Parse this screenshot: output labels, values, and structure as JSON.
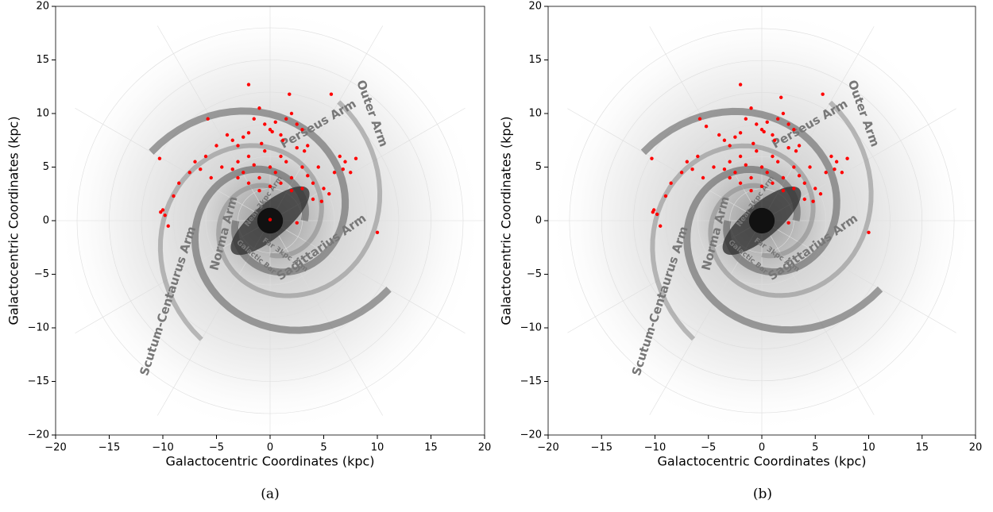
{
  "chart_data": [
    {
      "type": "scatter",
      "caption": "(a)",
      "xlabel": "Galactocentric Coordinates (kpc)",
      "ylabel": "Galactocentric Coordinates (kpc)",
      "color": "#ff0000",
      "xlim": [
        -20,
        20
      ],
      "ylim": [
        -20,
        20
      ],
      "xticks": [
        {
          "value": -20,
          "label": "−20"
        },
        {
          "value": -15,
          "label": "−15"
        },
        {
          "value": -10,
          "label": "−10"
        },
        {
          "value": -5,
          "label": "−5"
        },
        0,
        5,
        10,
        15,
        20
      ],
      "yticks": [
        {
          "value": -20,
          "label": "−20"
        },
        {
          "value": -15,
          "label": "−15"
        },
        {
          "value": -10,
          "label": "−10"
        },
        {
          "value": -5,
          "label": "−5"
        },
        0,
        5,
        10,
        15,
        20
      ],
      "annotations": [
        "Perseus Arm",
        "Outer Arm",
        "Norma Arm",
        "Sagittarius Arm",
        "Scutum-Centaurus Arm",
        "Near 3kpc Arm",
        "Far 3kpc Arm",
        "Galactic Bar"
      ],
      "x": [
        -10.3,
        -10,
        -9.8,
        -9.5,
        -10.2,
        -9,
        -8.5,
        -7.5,
        -6.5,
        -5.8,
        -5,
        -4,
        -3.5,
        -3,
        -2.5,
        -2,
        -2,
        -1.5,
        -1,
        -0.5,
        0,
        0.2,
        0.5,
        1,
        1.5,
        2,
        2.5,
        3,
        3.5,
        1.8,
        5.7,
        -4.5,
        -3.5,
        -3,
        -2.5,
        -2,
        -1.5,
        -1,
        -0.5,
        0,
        0.5,
        1,
        1.5,
        2,
        2.5,
        3,
        3.5,
        4,
        4.5,
        5,
        5.5,
        6,
        6.5,
        7,
        7.5,
        8,
        4,
        3,
        2,
        1,
        0,
        -1,
        -2,
        -3,
        0,
        2.5,
        10,
        -6,
        -7,
        -5.5,
        4.8,
        6.8,
        3.2,
        -0.8,
        1.2
      ],
      "y": [
        5.8,
        1,
        0.5,
        -0.5,
        0.8,
        2.3,
        3.5,
        4.5,
        4.8,
        9.5,
        7,
        8,
        7.5,
        7,
        7.8,
        12.7,
        8.2,
        9.5,
        10.5,
        9,
        8.5,
        8.3,
        9.2,
        8,
        9.5,
        10,
        9,
        8.5,
        7,
        11.8,
        11.8,
        5,
        4.8,
        5.5,
        4.5,
        6,
        5.2,
        4,
        6.5,
        5,
        4.5,
        6,
        5.5,
        4,
        6.8,
        5,
        4.2,
        3.5,
        5,
        3,
        2.5,
        4.5,
        6,
        5.5,
        4.5,
        5.8,
        2,
        3,
        2.8,
        3.5,
        3.2,
        2.8,
        3.5,
        4,
        0.1,
        -0.2,
        -1.1,
        6,
        5.5,
        4,
        1.8,
        4.8,
        6.5,
        7.2,
        7.5
      ]
    },
    {
      "type": "scatter",
      "caption": "(b)",
      "xlabel": "Galactocentric Coordinates (kpc)",
      "ylabel": "Galactocentric Coordinates (kpc)",
      "color": "#ff0000",
      "xlim": [
        -20,
        20
      ],
      "ylim": [
        -20,
        20
      ],
      "xticks": [
        {
          "value": -20,
          "label": "−20"
        },
        {
          "value": -15,
          "label": "−15"
        },
        {
          "value": -10,
          "label": "−10"
        },
        {
          "value": -5,
          "label": "−5"
        },
        0,
        5,
        10,
        15,
        20
      ],
      "yticks": [
        {
          "value": -20,
          "label": "−20"
        },
        {
          "value": -15,
          "label": "−15"
        },
        {
          "value": -10,
          "label": "−10"
        },
        {
          "value": -5,
          "label": "−5"
        },
        0,
        5,
        10,
        15,
        20
      ],
      "annotations": [
        "Perseus Arm",
        "Outer Arm",
        "Norma Arm",
        "Sagittarius Arm",
        "Scutum-Centaurus Arm",
        "Near 3kpc Arm",
        "Far 3kpc Arm",
        "Galactic Bar"
      ],
      "x": [
        -10.3,
        -10.1,
        -9.8,
        -9.5,
        -10.2,
        -9,
        -8.5,
        -7.5,
        -6.5,
        -5.8,
        -5.2,
        -4,
        -3.5,
        -3,
        -2.5,
        -2,
        -2,
        -1.5,
        -1,
        -0.5,
        0,
        0.2,
        0.5,
        1,
        1.5,
        2,
        2.5,
        3,
        3.5,
        1.8,
        5.7,
        -4.5,
        -3.5,
        -3,
        -2.5,
        -2,
        -1.5,
        -1,
        -0.5,
        0,
        0.5,
        1,
        1.5,
        2,
        2.5,
        3,
        3.5,
        4,
        4.5,
        5,
        5.5,
        6,
        6.5,
        7,
        7.5,
        8,
        4,
        3,
        2,
        1,
        0,
        -1,
        -2,
        -3,
        2.5,
        10,
        -6,
        -7,
        -5.5,
        4.8,
        6.8,
        3.2,
        -0.8,
        1.2
      ],
      "y": [
        5.8,
        1,
        0.6,
        -0.5,
        0.8,
        2.3,
        3.5,
        4.5,
        4.8,
        9.5,
        8.8,
        8,
        7.5,
        7,
        7.8,
        12.7,
        8.2,
        9.5,
        10.5,
        9,
        8.5,
        8.3,
        9.2,
        8,
        9.5,
        10,
        9,
        8.5,
        7,
        11.5,
        11.8,
        5,
        4.8,
        5.5,
        4.5,
        6,
        5.2,
        4,
        6.5,
        5,
        4.5,
        6,
        5.5,
        4,
        6.8,
        5,
        4.2,
        3.5,
        5,
        3,
        2.5,
        4.5,
        6,
        5.5,
        4.5,
        5.8,
        2,
        3,
        2.8,
        3.5,
        3.2,
        2.8,
        3.5,
        4,
        -0.2,
        -1.1,
        6,
        5.5,
        4,
        1.8,
        4.8,
        6.5,
        7.2,
        7.5
      ]
    }
  ]
}
